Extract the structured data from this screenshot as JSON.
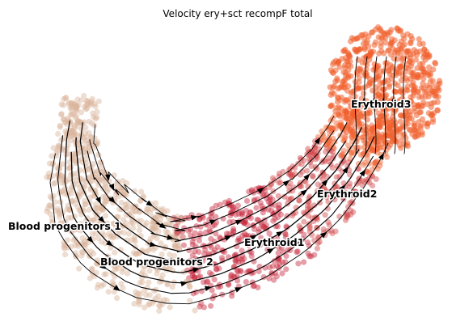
{
  "chart_data": {
    "type": "scatter",
    "title": "Velocity ery+sct recompF total",
    "xlabel": "",
    "ylabel": "",
    "axes_visible": false,
    "grid": false,
    "legend": "on data",
    "plot_kind": "embedding scatter with velocity streamlines",
    "colors": {
      "Blood progenitors 1": "#dab49c",
      "Blood progenitors 2": "#d9b49a",
      "Erythroid1": "#c72b3d",
      "Erythroid2": "#d2484a",
      "Erythroid3": "#f0602d"
    },
    "clusters": [
      {
        "name": "Blood progenitors 1"
      },
      {
        "name": "Blood progenitors 2"
      },
      {
        "name": "Erythroid1"
      },
      {
        "name": "Erythroid2"
      },
      {
        "name": "Erythroid3"
      }
    ]
  }
}
